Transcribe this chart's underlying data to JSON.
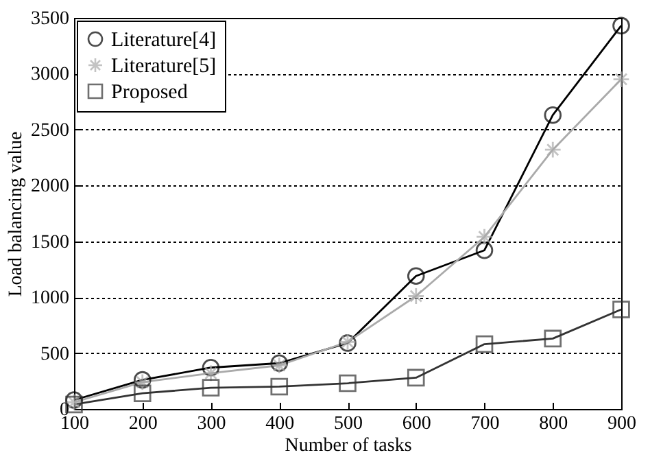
{
  "chart_data": {
    "type": "line",
    "xlabel": "Number of tasks",
    "ylabel": "Load balancing value",
    "x": [
      100,
      200,
      300,
      400,
      500,
      600,
      700,
      800,
      900
    ],
    "series": [
      {
        "name": "Literature[4]",
        "color": "#000000",
        "marker": "circle",
        "values": [
          80,
          260,
          370,
          410,
          590,
          1190,
          1420,
          2630,
          3430
        ]
      },
      {
        "name": "Literature[5]",
        "color": "#aaaaaa",
        "marker": "cross",
        "values": [
          60,
          240,
          320,
          390,
          600,
          1010,
          1540,
          2320,
          2950
        ]
      },
      {
        "name": "Proposed",
        "color": "#333333",
        "marker": "square",
        "values": [
          40,
          140,
          190,
          200,
          230,
          280,
          580,
          630,
          890
        ]
      }
    ],
    "xlim": [
      100,
      900
    ],
    "xticks": [
      100,
      200,
      300,
      400,
      500,
      600,
      700,
      800,
      900
    ],
    "ylim": [
      0,
      3500
    ],
    "yticks": [
      0,
      500,
      1000,
      1500,
      2000,
      2500,
      3000,
      3500
    ],
    "grid": "y",
    "legend": "top left",
    "line_style": "solid"
  }
}
